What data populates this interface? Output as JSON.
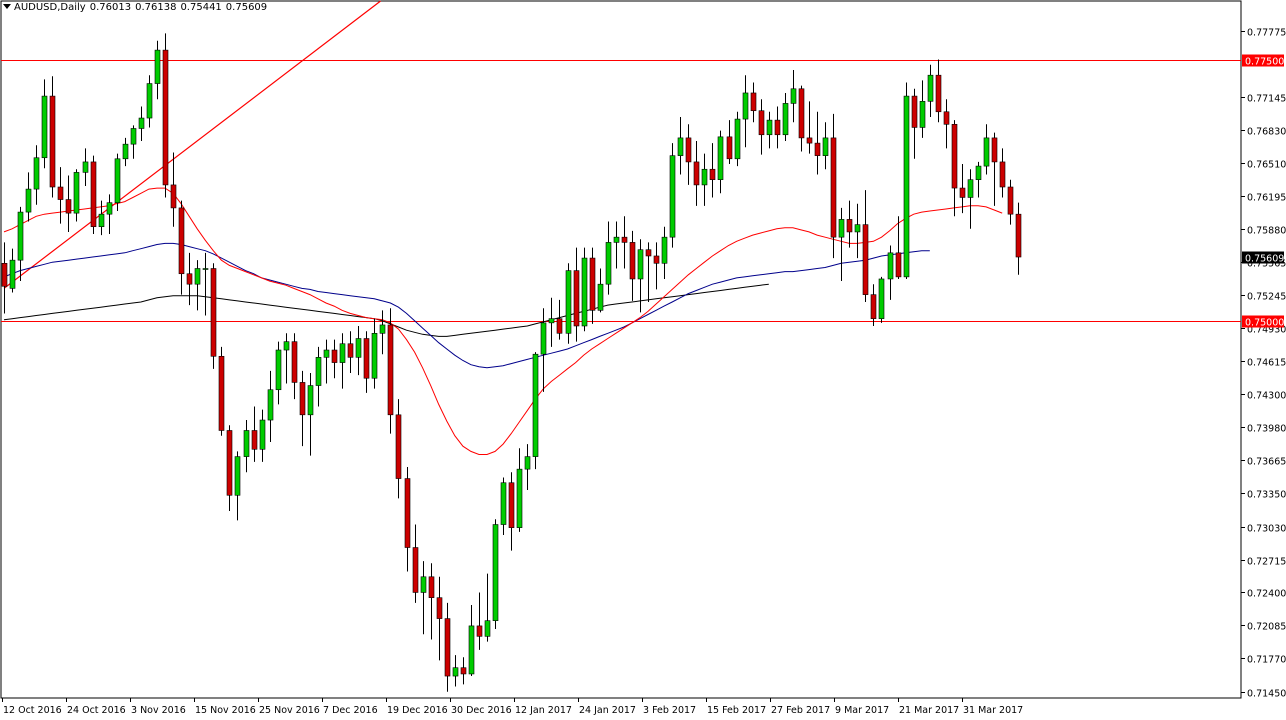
{
  "header": {
    "symbol": "AUDUSD,Daily",
    "open": "0.76013",
    "high": "0.76138",
    "low": "0.75441",
    "close": "0.75609"
  },
  "chart_data": {
    "type": "candlestick",
    "symbol": "AUDUSD",
    "timeframe": "Daily",
    "ylim": [
      0.7139,
      0.7806
    ],
    "y_ticks": [
      "0.77775",
      "0.77145",
      "0.76830",
      "0.76510",
      "0.76195",
      "0.75880",
      "0.75565",
      "0.75245",
      "0.74930",
      "0.74615",
      "0.74300",
      "0.73980",
      "0.73665",
      "0.73350",
      "0.73030",
      "0.72715",
      "0.72400",
      "0.72085",
      "0.71770",
      "0.71450"
    ],
    "x_labels": [
      "12 Oct 2016",
      "24 Oct 2016",
      "3 Nov 2016",
      "15 Nov 2016",
      "25 Nov 2016",
      "7 Dec 2016",
      "19 Dec 2016",
      "30 Dec 2016",
      "12 Jan 2017",
      "24 Jan 2017",
      "3 Feb 2017",
      "15 Feb 2017",
      "27 Feb 2017",
      "9 Mar 2017",
      "21 Mar 2017",
      "31 Mar 2017"
    ],
    "horizontal_lines": [
      {
        "label": "0.77500",
        "value": 0.775,
        "color": "#ff0000"
      },
      {
        "label": "0.75000",
        "value": 0.75,
        "color": "#ff0000"
      }
    ],
    "current_price": {
      "label": "0.75609",
      "value": 0.75609
    },
    "trendline": {
      "color": "#ff0000",
      "from": {
        "bar": 0,
        "value": 0.7531
      },
      "to": {
        "bar": 74,
        "value": 0.7966
      }
    },
    "colors": {
      "up": "#00cc00",
      "down": "#cc0000",
      "ma_fast": "#ff0000",
      "ma_mid": "#00008b",
      "ma_slow": "#000000",
      "grid_bg": "#ffffff",
      "axis": "#000000"
    },
    "candles": [
      [
        0.7555,
        0.7575,
        0.7507,
        0.7533
      ],
      [
        0.7531,
        0.7569,
        0.7527,
        0.7558
      ],
      [
        0.7558,
        0.7609,
        0.7538,
        0.7604
      ],
      [
        0.7604,
        0.7642,
        0.7595,
        0.7626
      ],
      [
        0.7626,
        0.7668,
        0.7611,
        0.7656
      ],
      [
        0.7656,
        0.7731,
        0.7646,
        0.7715
      ],
      [
        0.7715,
        0.7734,
        0.7618,
        0.7628
      ],
      [
        0.7628,
        0.7647,
        0.7593,
        0.7616
      ],
      [
        0.7616,
        0.7639,
        0.7585,
        0.7603
      ],
      [
        0.7603,
        0.7645,
        0.7595,
        0.7642
      ],
      [
        0.7642,
        0.7665,
        0.7629,
        0.7652
      ],
      [
        0.7652,
        0.7658,
        0.7583,
        0.759
      ],
      [
        0.759,
        0.7615,
        0.7582,
        0.7602
      ],
      [
        0.7602,
        0.7621,
        0.7583,
        0.7613
      ],
      [
        0.7613,
        0.766,
        0.7605,
        0.7655
      ],
      [
        0.7655,
        0.7675,
        0.7648,
        0.7669
      ],
      [
        0.7669,
        0.7687,
        0.7655,
        0.7684
      ],
      [
        0.7684,
        0.7705,
        0.7672,
        0.7694
      ],
      [
        0.7694,
        0.7735,
        0.7685,
        0.7727
      ],
      [
        0.7727,
        0.7768,
        0.7712,
        0.7759
      ],
      [
        0.7759,
        0.7775,
        0.7618,
        0.763
      ],
      [
        0.763,
        0.7661,
        0.759,
        0.7608
      ],
      [
        0.7608,
        0.7615,
        0.7525,
        0.7545
      ],
      [
        0.7545,
        0.7565,
        0.7515,
        0.7535
      ],
      [
        0.7535,
        0.7558,
        0.751,
        0.755
      ],
      [
        0.755,
        0.7565,
        0.7505,
        0.755
      ],
      [
        0.755,
        0.7555,
        0.7454,
        0.7466
      ],
      [
        0.7466,
        0.7475,
        0.739,
        0.7395
      ],
      [
        0.7395,
        0.74,
        0.7318,
        0.7333
      ],
      [
        0.7333,
        0.7375,
        0.7309,
        0.737
      ],
      [
        0.737,
        0.7405,
        0.7355,
        0.7395
      ],
      [
        0.7395,
        0.7418,
        0.7365,
        0.7377
      ],
      [
        0.7377,
        0.7415,
        0.7365,
        0.7405
      ],
      [
        0.7405,
        0.7452,
        0.7384,
        0.7434
      ],
      [
        0.7434,
        0.748,
        0.742,
        0.7472
      ],
      [
        0.7472,
        0.7488,
        0.744,
        0.748
      ],
      [
        0.748,
        0.7488,
        0.7425,
        0.7441
      ],
      [
        0.7441,
        0.7452,
        0.738,
        0.741
      ],
      [
        0.741,
        0.745,
        0.7371,
        0.7438
      ],
      [
        0.7438,
        0.7475,
        0.7418,
        0.7465
      ],
      [
        0.7465,
        0.7482,
        0.744,
        0.7472
      ],
      [
        0.7472,
        0.7482,
        0.7445,
        0.746
      ],
      [
        0.746,
        0.7488,
        0.7435,
        0.7478
      ],
      [
        0.7478,
        0.749,
        0.745,
        0.7465
      ],
      [
        0.7465,
        0.7495,
        0.7448,
        0.7483
      ],
      [
        0.7483,
        0.749,
        0.7431,
        0.7445
      ],
      [
        0.7445,
        0.7502,
        0.7435,
        0.7488
      ],
      [
        0.7488,
        0.751,
        0.7468,
        0.7496
      ],
      [
        0.7496,
        0.7512,
        0.7392,
        0.741
      ],
      [
        0.741,
        0.7425,
        0.733,
        0.7349
      ],
      [
        0.7349,
        0.736,
        0.726,
        0.7283
      ],
      [
        0.7283,
        0.7305,
        0.723,
        0.724
      ],
      [
        0.724,
        0.727,
        0.72,
        0.7255
      ],
      [
        0.7255,
        0.7268,
        0.7195,
        0.7235
      ],
      [
        0.7235,
        0.7255,
        0.7175,
        0.7215
      ],
      [
        0.7215,
        0.723,
        0.7145,
        0.716
      ],
      [
        0.716,
        0.718,
        0.715,
        0.7168
      ],
      [
        0.7168,
        0.7178,
        0.7152,
        0.7162
      ],
      [
        0.7162,
        0.7228,
        0.716,
        0.7208
      ],
      [
        0.7208,
        0.724,
        0.7185,
        0.7198
      ],
      [
        0.7198,
        0.7258,
        0.7193,
        0.7213
      ],
      [
        0.7213,
        0.731,
        0.7205,
        0.7305
      ],
      [
        0.7305,
        0.735,
        0.7295,
        0.7345
      ],
      [
        0.7345,
        0.7355,
        0.728,
        0.7302
      ],
      [
        0.7302,
        0.7378,
        0.7298,
        0.7358
      ],
      [
        0.7358,
        0.7382,
        0.7338,
        0.737
      ],
      [
        0.737,
        0.747,
        0.7358,
        0.7468
      ],
      [
        0.7468,
        0.7512,
        0.7432,
        0.7498
      ],
      [
        0.7498,
        0.7522,
        0.7475,
        0.7502
      ],
      [
        0.7502,
        0.752,
        0.7482,
        0.7488
      ],
      [
        0.7488,
        0.7555,
        0.7478,
        0.7548
      ],
      [
        0.7548,
        0.757,
        0.748,
        0.7495
      ],
      [
        0.7495,
        0.757,
        0.749,
        0.756
      ],
      [
        0.756,
        0.757,
        0.7497,
        0.751
      ],
      [
        0.751,
        0.755,
        0.7508,
        0.7535
      ],
      [
        0.7535,
        0.7595,
        0.7525,
        0.7575
      ],
      [
        0.7575,
        0.7595,
        0.755,
        0.758
      ],
      [
        0.758,
        0.76,
        0.755,
        0.7575
      ],
      [
        0.7575,
        0.7586,
        0.7519,
        0.754
      ],
      [
        0.754,
        0.7578,
        0.7508,
        0.7568
      ],
      [
        0.7568,
        0.7575,
        0.7518,
        0.7562
      ],
      [
        0.7562,
        0.7575,
        0.753,
        0.7555
      ],
      [
        0.7555,
        0.759,
        0.754,
        0.758
      ],
      [
        0.758,
        0.767,
        0.757,
        0.7658
      ],
      [
        0.7658,
        0.7695,
        0.764,
        0.7675
      ],
      [
        0.7675,
        0.7688,
        0.763,
        0.7652
      ],
      [
        0.7652,
        0.7672,
        0.761,
        0.763
      ],
      [
        0.763,
        0.766,
        0.761,
        0.7645
      ],
      [
        0.7645,
        0.767,
        0.7618,
        0.7635
      ],
      [
        0.7635,
        0.7682,
        0.7622,
        0.7676
      ],
      [
        0.7676,
        0.7692,
        0.765,
        0.7655
      ],
      [
        0.7655,
        0.77,
        0.7648,
        0.7693
      ],
      [
        0.7693,
        0.7735,
        0.7666,
        0.7718
      ],
      [
        0.7718,
        0.7728,
        0.769,
        0.7701
      ],
      [
        0.7701,
        0.7712,
        0.7659,
        0.7678
      ],
      [
        0.7678,
        0.77,
        0.7665,
        0.7692
      ],
      [
        0.7692,
        0.7705,
        0.7665,
        0.7678
      ],
      [
        0.7678,
        0.7718,
        0.7672,
        0.7708
      ],
      [
        0.7708,
        0.774,
        0.769,
        0.7722
      ],
      [
        0.7722,
        0.7725,
        0.7662,
        0.7675
      ],
      [
        0.7675,
        0.771,
        0.766,
        0.767
      ],
      [
        0.767,
        0.77,
        0.764,
        0.7658
      ],
      [
        0.7658,
        0.769,
        0.7645,
        0.7675
      ],
      [
        0.7675,
        0.7698,
        0.756,
        0.758
      ],
      [
        0.758,
        0.7608,
        0.7538,
        0.7597
      ],
      [
        0.7597,
        0.7615,
        0.757,
        0.7585
      ],
      [
        0.7585,
        0.7612,
        0.756,
        0.7592
      ],
      [
        0.7592,
        0.7625,
        0.7518,
        0.7525
      ],
      [
        0.7525,
        0.7535,
        0.7495,
        0.7502
      ],
      [
        0.7502,
        0.7542,
        0.7498,
        0.754
      ],
      [
        0.754,
        0.7572,
        0.752,
        0.7565
      ],
      [
        0.7565,
        0.76,
        0.754,
        0.7542
      ],
      [
        0.7542,
        0.7728,
        0.754,
        0.7715
      ],
      [
        0.7715,
        0.7722,
        0.7655,
        0.7685
      ],
      [
        0.7685,
        0.773,
        0.7675,
        0.771
      ],
      [
        0.771,
        0.7745,
        0.7695,
        0.7735
      ],
      [
        0.7735,
        0.775,
        0.769,
        0.77
      ],
      [
        0.77,
        0.7712,
        0.7665,
        0.7688
      ],
      [
        0.7688,
        0.7692,
        0.76,
        0.7627
      ],
      [
        0.7627,
        0.765,
        0.7603,
        0.7618
      ],
      [
        0.7618,
        0.7645,
        0.7588,
        0.7635
      ],
      [
        0.7635,
        0.7652,
        0.7618,
        0.7648
      ],
      [
        0.7648,
        0.7688,
        0.764,
        0.7675
      ],
      [
        0.7675,
        0.768,
        0.761,
        0.7652
      ],
      [
        0.7652,
        0.7665,
        0.7618,
        0.7628
      ],
      [
        0.7628,
        0.7635,
        0.7592,
        0.7602
      ],
      [
        0.7602,
        0.7613,
        0.7544,
        0.7561
      ]
    ],
    "ma_fast": [
      0.7585,
      0.7588,
      0.7592,
      0.7596,
      0.76,
      0.7602,
      0.7603,
      0.7604,
      0.7605,
      0.7606,
      0.7607,
      0.7608,
      0.7609,
      0.761,
      0.7612,
      0.7614,
      0.7618,
      0.7622,
      0.7626,
      0.7627,
      0.7627,
      0.7622,
      0.7612,
      0.76,
      0.7588,
      0.7577,
      0.7567,
      0.7558,
      0.7553,
      0.755,
      0.7547,
      0.7544,
      0.7541,
      0.7538,
      0.7536,
      0.7534,
      0.7531,
      0.7528,
      0.7525,
      0.7521,
      0.7517,
      0.7514,
      0.751,
      0.7507,
      0.7505,
      0.7503,
      0.7502,
      0.7501,
      0.7498,
      0.7492,
      0.7482,
      0.747,
      0.7455,
      0.7438,
      0.742,
      0.7404,
      0.739,
      0.738,
      0.7375,
      0.7372,
      0.7372,
      0.7375,
      0.7382,
      0.7392,
      0.7403,
      0.7414,
      0.7425,
      0.7435,
      0.7442,
      0.7448,
      0.7454,
      0.746,
      0.7467,
      0.7473,
      0.7478,
      0.7483,
      0.7488,
      0.7493,
      0.7498,
      0.7503,
      0.7509,
      0.7516,
      0.7523,
      0.753,
      0.7537,
      0.7544,
      0.755,
      0.7556,
      0.7562,
      0.7567,
      0.7572,
      0.7576,
      0.7579,
      0.7582,
      0.7584,
      0.7586,
      0.7588,
      0.7589,
      0.7589,
      0.7587,
      0.7585,
      0.7582,
      0.758,
      0.7578,
      0.7576,
      0.7574,
      0.7574,
      0.7575,
      0.7576,
      0.758,
      0.7586,
      0.7593,
      0.7598,
      0.7602,
      0.7604,
      0.7605,
      0.7606,
      0.7607,
      0.7608,
      0.7609,
      0.761,
      0.761,
      0.7609,
      0.7606,
      0.7603
    ],
    "ma_mid": [
      0.7542,
      0.7545,
      0.7548,
      0.755,
      0.7552,
      0.7554,
      0.7556,
      0.7557,
      0.7558,
      0.7559,
      0.756,
      0.7561,
      0.7562,
      0.7563,
      0.7564,
      0.7565,
      0.7567,
      0.7569,
      0.7571,
      0.7573,
      0.7574,
      0.7574,
      0.7573,
      0.7571,
      0.7569,
      0.7567,
      0.7564,
      0.756,
      0.7556,
      0.7552,
      0.7548,
      0.7545,
      0.7541,
      0.7539,
      0.7537,
      0.7535,
      0.7533,
      0.7531,
      0.753,
      0.7528,
      0.7527,
      0.7526,
      0.7525,
      0.7524,
      0.7523,
      0.7522,
      0.7521,
      0.7519,
      0.7517,
      0.7513,
      0.7507,
      0.75,
      0.7493,
      0.7486,
      0.7479,
      0.7473,
      0.7467,
      0.7462,
      0.7458,
      0.7456,
      0.7455,
      0.7456,
      0.7457,
      0.7459,
      0.7461,
      0.7463,
      0.7465,
      0.7467,
      0.7469,
      0.7471,
      0.7473,
      0.7476,
      0.7479,
      0.7482,
      0.7485,
      0.7488,
      0.7491,
      0.7494,
      0.7498,
      0.7502,
      0.7506,
      0.751,
      0.7514,
      0.7518,
      0.7522,
      0.7526,
      0.7529,
      0.7532,
      0.7535,
      0.7537,
      0.7539,
      0.7541,
      0.7542,
      0.7543,
      0.7544,
      0.7545,
      0.7546,
      0.7547,
      0.7547,
      0.7548,
      0.7549,
      0.755,
      0.7551,
      0.7553,
      0.7555,
      0.7556,
      0.7557,
      0.7558,
      0.756,
      0.7562,
      0.7563,
      0.7564,
      0.7565,
      0.7566,
      0.7567,
      0.7567
    ],
    "ma_slow": [
      0.7501,
      0.7502,
      0.7503,
      0.7504,
      0.7505,
      0.7506,
      0.7507,
      0.7508,
      0.7509,
      0.751,
      0.7511,
      0.7512,
      0.7513,
      0.7514,
      0.7515,
      0.7516,
      0.7517,
      0.7518,
      0.752,
      0.7522,
      0.7523,
      0.7524,
      0.7524,
      0.7524,
      0.7524,
      0.7523,
      0.7522,
      0.7521,
      0.752,
      0.7519,
      0.7518,
      0.7517,
      0.7516,
      0.7515,
      0.7514,
      0.7513,
      0.7512,
      0.7511,
      0.751,
      0.7509,
      0.7508,
      0.7507,
      0.7506,
      0.7505,
      0.7504,
      0.7503,
      0.7502,
      0.75,
      0.7497,
      0.7494,
      0.7491,
      0.7489,
      0.7487,
      0.7486,
      0.7485,
      0.7485,
      0.7486,
      0.7487,
      0.7488,
      0.7489,
      0.749,
      0.7491,
      0.7492,
      0.7493,
      0.7494,
      0.7495,
      0.7497,
      0.7499,
      0.7501,
      0.7503,
      0.7505,
      0.7507,
      0.7509,
      0.7511,
      0.7513,
      0.7515,
      0.7516,
      0.7517,
      0.7518,
      0.7519,
      0.752,
      0.7521,
      0.7522,
      0.7523,
      0.7524,
      0.7525,
      0.7526,
      0.7527,
      0.7528,
      0.7529,
      0.753,
      0.7531,
      0.7532,
      0.7533,
      0.7534,
      0.7535
    ]
  }
}
